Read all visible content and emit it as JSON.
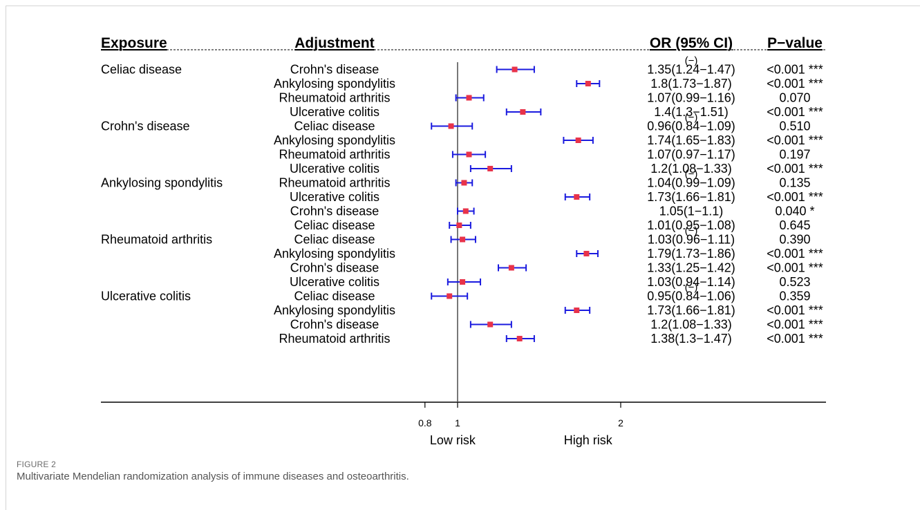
{
  "figure": {
    "label": "FIGURE 2",
    "caption": "Multivariate Mendelian randomization analysis of immune diseases and osteoarthritis."
  },
  "chart_data": {
    "type": "forest",
    "columns": {
      "exposure": "Exposure",
      "adjustment": "Adjustment",
      "or_ci": "OR (95% CI)",
      "pvalue": "P−value"
    },
    "x_axis": {
      "ticks": [
        0.8,
        1,
        2
      ],
      "tick_labels": [
        "0.8",
        "1",
        "2"
      ],
      "range": [
        0.8,
        2.2
      ],
      "reference_line": 1,
      "left_label": "Low risk",
      "right_label": "High risk"
    },
    "group_placeholder": "(−)",
    "colors": {
      "point": "#e8334a",
      "ci": "#1a1adf",
      "reference": "#555555",
      "text": "#000000"
    },
    "groups": [
      {
        "exposure": "Celiac disease",
        "rows": [
          {
            "adjustment": "Crohn's disease",
            "or": 1.35,
            "lo": 1.24,
            "hi": 1.47,
            "or_text": "1.35(1.24−1.47)",
            "p": "<0.001 ***"
          },
          {
            "adjustment": "Ankylosing spondylitis",
            "or": 1.8,
            "lo": 1.73,
            "hi": 1.87,
            "or_text": "1.8(1.73−1.87)",
            "p": "<0.001 ***"
          },
          {
            "adjustment": "Rheumatoid arthritis",
            "or": 1.07,
            "lo": 0.99,
            "hi": 1.16,
            "or_text": "1.07(0.99−1.16)",
            "p": "0.070"
          },
          {
            "adjustment": "Ulcerative colitis",
            "or": 1.4,
            "lo": 1.3,
            "hi": 1.51,
            "or_text": "1.4(1.3−1.51)",
            "p": "<0.001 ***"
          }
        ]
      },
      {
        "exposure": "Crohn's disease",
        "rows": [
          {
            "adjustment": "Celiac disease",
            "or": 0.96,
            "lo": 0.84,
            "hi": 1.09,
            "or_text": "0.96(0.84−1.09)",
            "p": "0.510"
          },
          {
            "adjustment": "Ankylosing spondylitis",
            "or": 1.74,
            "lo": 1.65,
            "hi": 1.83,
            "or_text": "1.74(1.65−1.83)",
            "p": "<0.001 ***"
          },
          {
            "adjustment": "Rheumatoid arthritis",
            "or": 1.07,
            "lo": 0.97,
            "hi": 1.17,
            "or_text": "1.07(0.97−1.17)",
            "p": "0.197"
          },
          {
            "adjustment": "Ulcerative colitis",
            "or": 1.2,
            "lo": 1.08,
            "hi": 1.33,
            "or_text": "1.2(1.08−1.33)",
            "p": "<0.001 ***"
          }
        ]
      },
      {
        "exposure": "Ankylosing spondylitis",
        "rows": [
          {
            "adjustment": "Rheumatoid arthritis",
            "or": 1.04,
            "lo": 0.99,
            "hi": 1.09,
            "or_text": "1.04(0.99−1.09)",
            "p": "0.135"
          },
          {
            "adjustment": "Ulcerative colitis",
            "or": 1.73,
            "lo": 1.66,
            "hi": 1.81,
            "or_text": "1.73(1.66−1.81)",
            "p": "<0.001 ***"
          },
          {
            "adjustment": "Crohn's disease",
            "or": 1.05,
            "lo": 1,
            "hi": 1.1,
            "or_text": "1.05(1−1.1)",
            "p": "0.040 *"
          },
          {
            "adjustment": "Celiac disease",
            "or": 1.01,
            "lo": 0.95,
            "hi": 1.08,
            "or_text": "1.01(0.95−1.08)",
            "p": "0.645"
          }
        ]
      },
      {
        "exposure": "Rheumatoid arthritis",
        "rows": [
          {
            "adjustment": "Celiac disease",
            "or": 1.03,
            "lo": 0.96,
            "hi": 1.11,
            "or_text": "1.03(0.96−1.11)",
            "p": "0.390"
          },
          {
            "adjustment": "Ankylosing spondylitis",
            "or": 1.79,
            "lo": 1.73,
            "hi": 1.86,
            "or_text": "1.79(1.73−1.86)",
            "p": "<0.001 ***"
          },
          {
            "adjustment": "Crohn's disease",
            "or": 1.33,
            "lo": 1.25,
            "hi": 1.42,
            "or_text": "1.33(1.25−1.42)",
            "p": "<0.001 ***"
          },
          {
            "adjustment": "Ulcerative colitis",
            "or": 1.03,
            "lo": 0.94,
            "hi": 1.14,
            "or_text": "1.03(0.94−1.14)",
            "p": "0.523"
          }
        ]
      },
      {
        "exposure": "Ulcerative colitis",
        "rows": [
          {
            "adjustment": "Celiac disease",
            "or": 0.95,
            "lo": 0.84,
            "hi": 1.06,
            "or_text": "0.95(0.84−1.06)",
            "p": "0.359"
          },
          {
            "adjustment": "Ankylosing spondylitis",
            "or": 1.73,
            "lo": 1.66,
            "hi": 1.81,
            "or_text": "1.73(1.66−1.81)",
            "p": "<0.001 ***"
          },
          {
            "adjustment": "Crohn's disease",
            "or": 1.2,
            "lo": 1.08,
            "hi": 1.33,
            "or_text": "1.2(1.08−1.33)",
            "p": "<0.001 ***"
          },
          {
            "adjustment": "Rheumatoid arthritis",
            "or": 1.38,
            "lo": 1.3,
            "hi": 1.47,
            "or_text": "1.38(1.3−1.47)",
            "p": "<0.001 ***"
          }
        ]
      }
    ]
  }
}
